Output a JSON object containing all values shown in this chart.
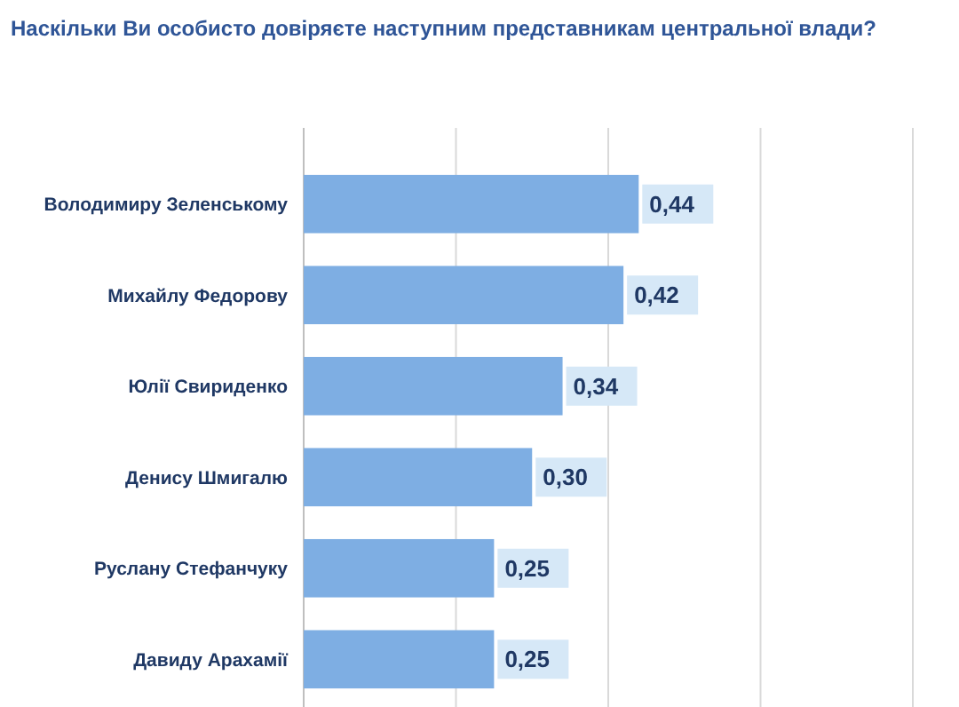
{
  "chart_data": {
    "type": "bar",
    "orientation": "horizontal",
    "title": "Наскільки Ви особисто довіряєте наступним представникам центральної влади?",
    "categories": [
      "Володимиру Зеленському",
      "Михайлу Федорову",
      "Юлії Свириденко",
      "Денису Шмигалю",
      "Руслану Стефанчуку",
      "Давиду Арахамії"
    ],
    "values": [
      0.44,
      0.42,
      0.34,
      0.3,
      0.25,
      0.25
    ],
    "value_labels": [
      "0,44",
      "0,42",
      "0,34",
      "0,30",
      "0,25",
      "0,25"
    ],
    "color": "#7eaee3",
    "xlim": [
      0,
      0.8
    ],
    "xticks": [
      {
        "value": 0,
        "label": null
      },
      {
        "value": 0.2,
        "label": null
      },
      {
        "value": 0.4,
        "label": null
      },
      {
        "value": 0.6,
        "label": null
      },
      {
        "value": 0.8,
        "label": null
      }
    ],
    "grid": "x",
    "tick_labels": "y"
  }
}
